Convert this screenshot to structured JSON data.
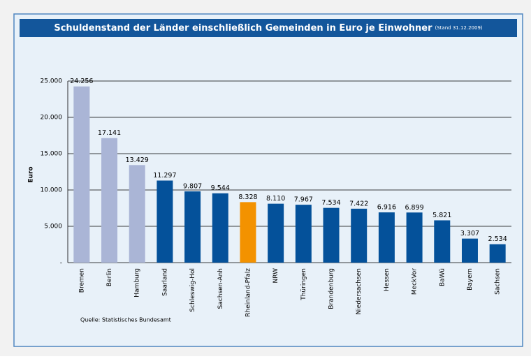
{
  "chart_data": {
    "type": "bar",
    "title": "Schuldenstand der Länder einschließlich Gemeinden in Euro je Einwohner",
    "subtitle": "(Stand 31.12.2009)",
    "y_label": "Euro",
    "source": "Quelle: Statistisches Bundesamt",
    "categories": [
      "Bremen",
      "Berlin",
      "Hamburg",
      "Saarland",
      "Schleswig-Hol",
      "Sachsen-Anh",
      "Rheinland-Pfalz",
      "NRW",
      "Thüringen",
      "Brandenburg",
      "Niedersachsen",
      "Hessen",
      "MeckVor",
      "BaWü",
      "Bayern",
      "Sachsen"
    ],
    "values": [
      24256,
      17141,
      13429,
      11297,
      9807,
      9544,
      8328,
      8110,
      7967,
      7534,
      7422,
      6916,
      6899,
      5821,
      3307,
      2534
    ],
    "value_labels": [
      "24.256",
      "17.141",
      "13.429",
      "11.297",
      "9.807",
      "9.544",
      "8.328",
      "8.110",
      "7.967",
      "7.534",
      "7.422",
      "6.916",
      "6.899",
      "5.821",
      "3.307",
      "2.534"
    ],
    "colors": [
      "#aab5d6",
      "#aab5d6",
      "#aab5d6",
      "#04519a",
      "#04519a",
      "#04519a",
      "#f39200",
      "#04519a",
      "#04519a",
      "#04519a",
      "#04519a",
      "#04519a",
      "#04519a",
      "#04519a",
      "#04519a",
      "#04519a"
    ],
    "ylim": [
      0,
      25000
    ],
    "yticks": [
      {
        "value": 0,
        "label": "-"
      },
      {
        "value": 5000,
        "label": "5.000"
      },
      {
        "value": 10000,
        "label": "10.000"
      },
      {
        "value": 15000,
        "label": "15.000"
      },
      {
        "value": 20000,
        "label": "20.000"
      },
      {
        "value": 25000,
        "label": "25.000"
      }
    ],
    "grid": true
  }
}
